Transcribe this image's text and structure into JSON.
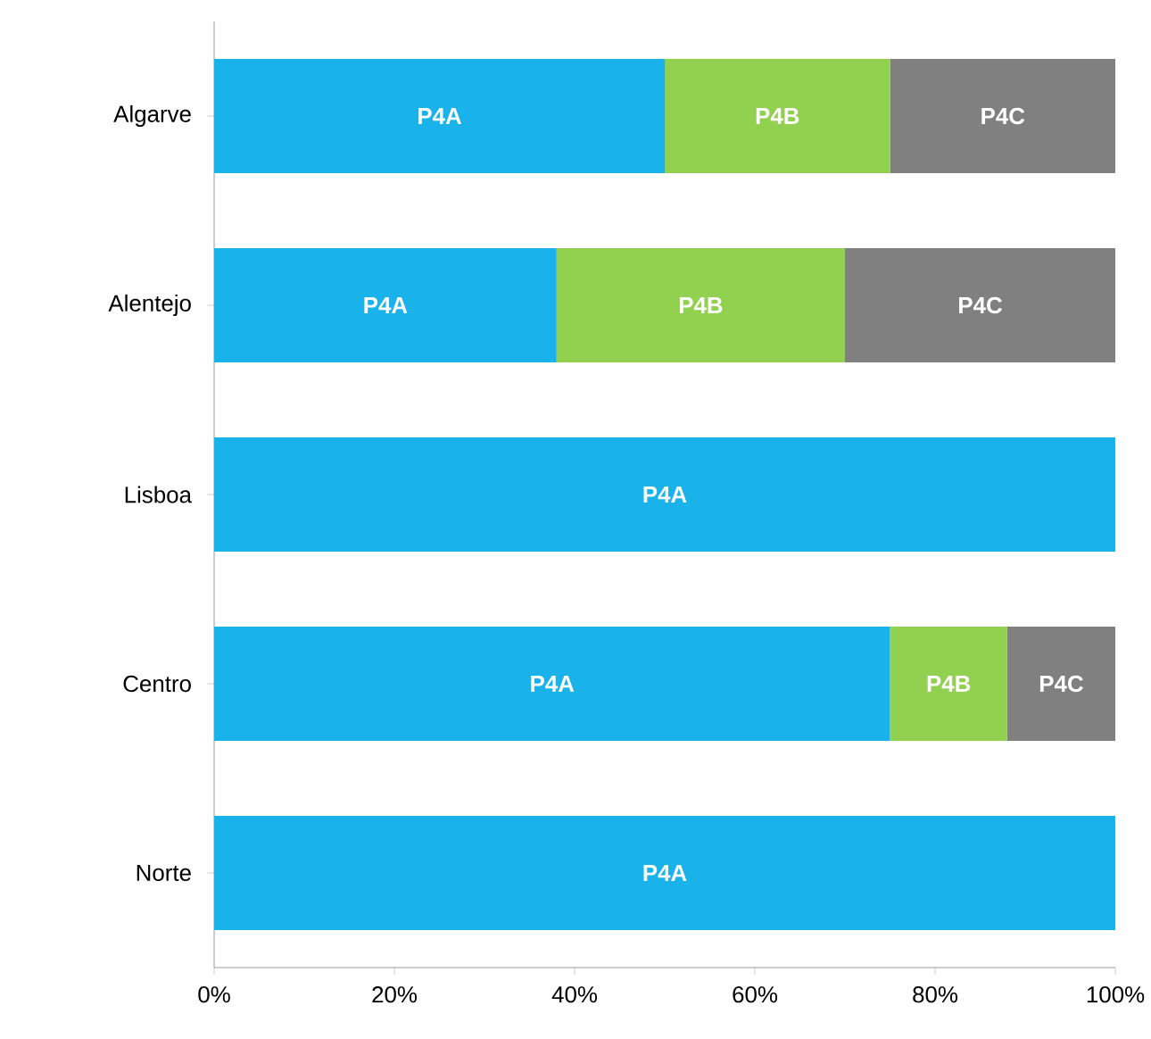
{
  "chart_data": {
    "type": "bar",
    "orientation": "horizontal",
    "stacked": true,
    "categories": [
      "Algarve",
      "Alentejo",
      "Lisboa",
      "Centro",
      "Norte"
    ],
    "series": [
      {
        "name": "P4A",
        "color": "#19b2ea",
        "values": [
          50,
          38,
          100,
          75,
          100
        ]
      },
      {
        "name": "P4B",
        "color": "#92d050",
        "values": [
          25,
          32,
          0,
          13,
          0
        ]
      },
      {
        "name": "P4C",
        "color": "#808080",
        "values": [
          25,
          30,
          0,
          12,
          0
        ]
      }
    ],
    "xlim": [
      0,
      100
    ],
    "xticks": [
      {
        "value": 0,
        "label": "0%"
      },
      {
        "value": 20,
        "label": "20%"
      },
      {
        "value": 40,
        "label": "40%"
      },
      {
        "value": 60,
        "label": "60%"
      },
      {
        "value": 80,
        "label": "80%"
      },
      {
        "value": 100,
        "label": "100%"
      }
    ],
    "grid": false,
    "legend": false
  }
}
